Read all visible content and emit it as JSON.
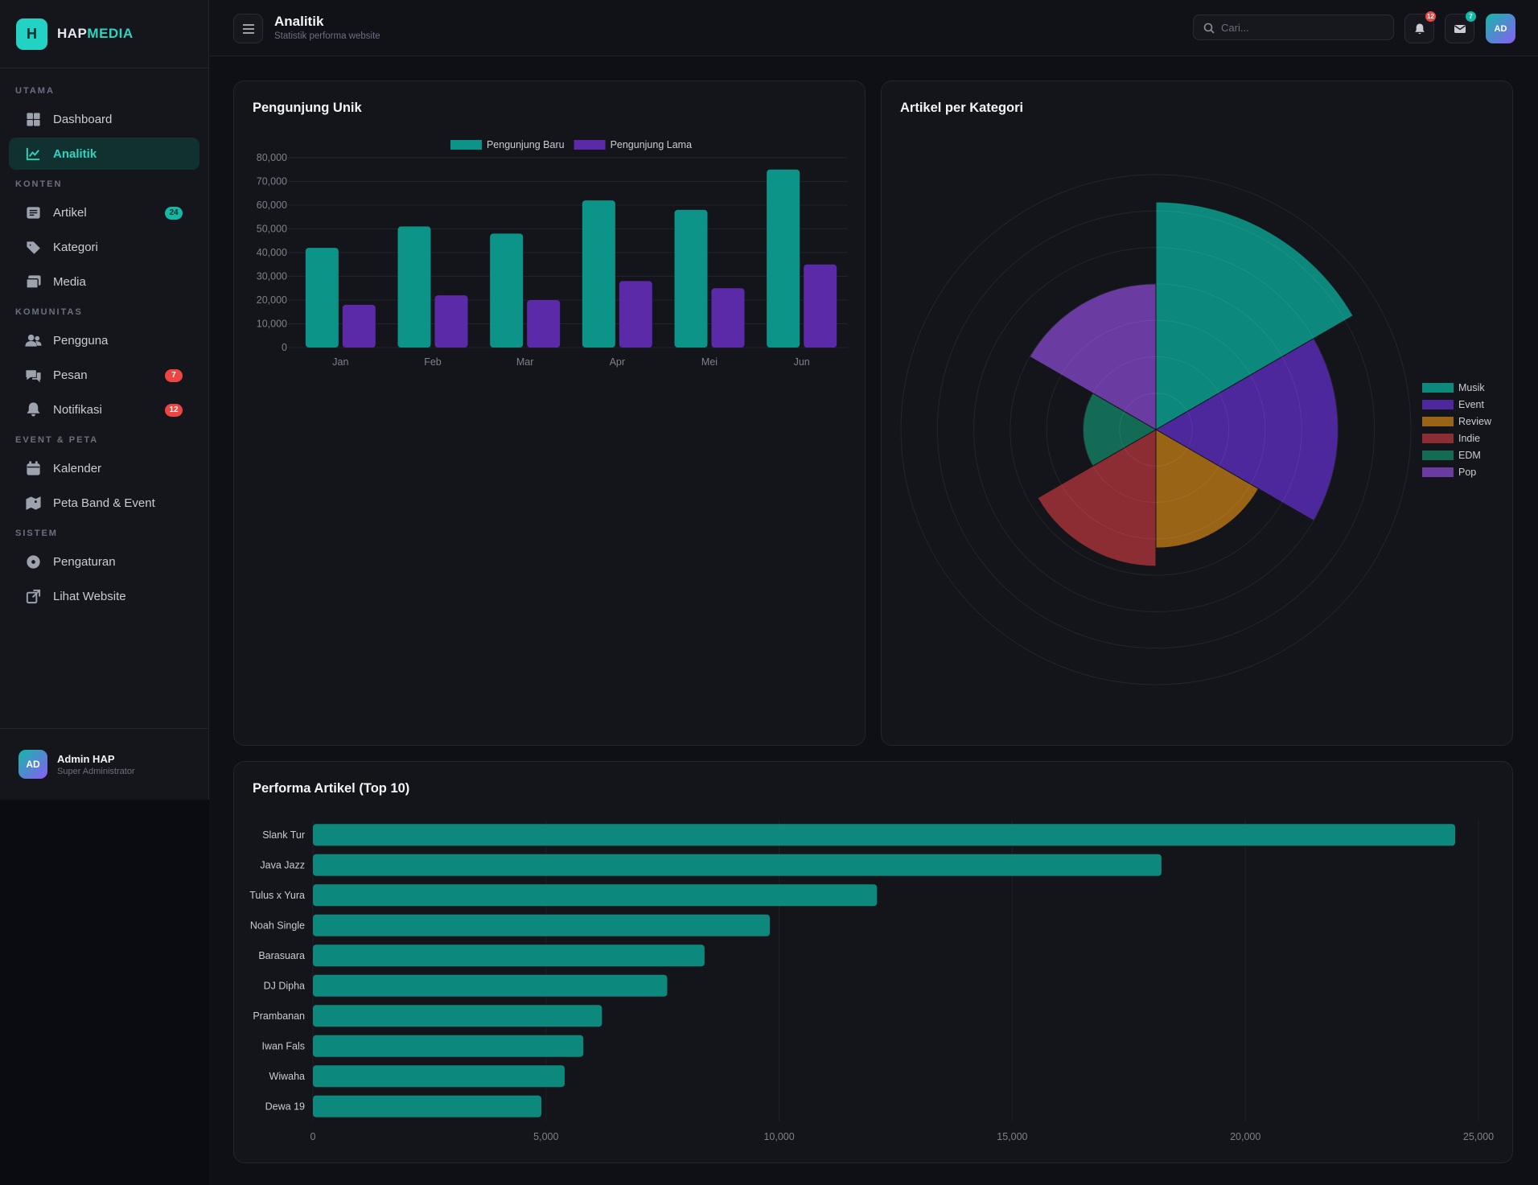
{
  "sidebar": {
    "brand": {
      "logo": "H",
      "name_a": "HAP",
      "name_b": "MEDIA"
    },
    "sections": [
      {
        "title": "UTAMA",
        "items": [
          {
            "label": "Dashboard"
          },
          {
            "label": "Analitik",
            "active": true
          }
        ]
      },
      {
        "title": "KONTEN",
        "items": [
          {
            "label": "Artikel",
            "badge": 24,
            "badge_color": "#14b8a6"
          },
          {
            "label": "Kategori"
          },
          {
            "label": "Media"
          }
        ]
      },
      {
        "title": "KOMUNITAS",
        "items": [
          {
            "label": "Pengguna"
          },
          {
            "label": "Pesan",
            "badge": 7,
            "badge_color": "#ef4444"
          },
          {
            "label": "Notifikasi",
            "badge": 12,
            "badge_color": "#ef4444"
          }
        ]
      },
      {
        "title": "EVENT & PETA",
        "items": [
          {
            "label": "Kalender"
          },
          {
            "label": "Peta Band & Event"
          }
        ]
      },
      {
        "title": "SISTEM",
        "items": [
          {
            "label": "Pengaturan"
          },
          {
            "label": "Lihat Website"
          }
        ]
      }
    ],
    "user": {
      "avatar": "AD",
      "name": "Admin HAP",
      "role": "Super Administrator"
    }
  },
  "header": {
    "title": "Analitik",
    "subtitle": "Statistik performa website",
    "search_placeholder": "Cari...",
    "notifications": 12,
    "messages": 7,
    "avatar": "AD"
  },
  "chart_data": [
    {
      "type": "bar",
      "title": "Pengunjung Unik",
      "categories": [
        "Jan",
        "Feb",
        "Mar",
        "Apr",
        "Mei",
        "Jun"
      ],
      "series": [
        {
          "name": "Pengunjung Baru",
          "color": "#0d9488",
          "values": [
            42000,
            51000,
            48000,
            62000,
            58000,
            75000
          ]
        },
        {
          "name": "Pengunjung Lama",
          "color": "#5b2aa8",
          "values": [
            18000,
            22000,
            20000,
            28000,
            25000,
            35000
          ]
        }
      ],
      "ylim": [
        0,
        80000
      ],
      "yticks": [
        0,
        {
          "value": 10000,
          "label": "10,000"
        },
        {
          "value": 20000,
          "label": "20,000"
        },
        {
          "value": 30000,
          "label": "30,000"
        },
        {
          "value": 40000,
          "label": "40,000"
        },
        {
          "value": 50000,
          "label": "50,000"
        },
        {
          "value": 60000,
          "label": "60,000"
        },
        {
          "value": 70000,
          "label": "70,000"
        },
        {
          "value": 80000,
          "label": "80,000"
        }
      ],
      "grid": true,
      "legend": "top"
    },
    {
      "type": "polarArea",
      "title": "Artikel per Kategori",
      "categories": [
        "Musik",
        "Event",
        "Review",
        "Indie",
        "EDM",
        "Pop"
      ],
      "values": [
        25,
        20,
        13,
        15,
        8,
        16
      ],
      "colors": [
        "#0d887c",
        "#4d279c",
        "#9a6416",
        "#8c2c33",
        "#136b56",
        "#6a3ba0"
      ],
      "rlim": [
        0,
        28
      ],
      "rticks": [
        4,
        8,
        12,
        16,
        20,
        24,
        28
      ],
      "grid": true,
      "legend": "right"
    },
    {
      "type": "bar",
      "orientation": "horizontal",
      "title": "Performa Artikel (Top 10)",
      "categories": [
        "Slank Tur",
        "Java Jazz",
        "Tulus x Yura",
        "Noah Single",
        "Barasuara",
        "DJ Dipha",
        "Prambanan",
        "Iwan Fals",
        "Wiwaha",
        "Dewa 19"
      ],
      "values": [
        24500,
        18200,
        12100,
        9800,
        8400,
        7600,
        6200,
        5800,
        5400,
        4900
      ],
      "color": "#0d887c",
      "xlim": [
        0,
        25000
      ],
      "xticks": [
        0,
        {
          "value": 5000,
          "label": "5,000"
        },
        {
          "value": 10000,
          "label": "10,000"
        },
        {
          "value": 15000,
          "label": "15,000"
        },
        {
          "value": 20000,
          "label": "20,000"
        },
        {
          "value": 25000,
          "label": "25,000"
        }
      ],
      "grid": true
    }
  ]
}
